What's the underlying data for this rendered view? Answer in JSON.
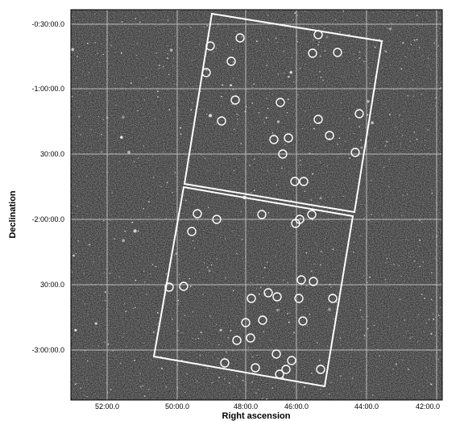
{
  "plot": {
    "xlabel": "Right ascension",
    "ylabel": "Declination",
    "ra_ticks": [
      "52:00.0",
      "50:00.0",
      "48:00.0",
      "46:00.0",
      "44:00.0",
      "42:00.0"
    ],
    "dec_ticks": [
      "-0:30:00.0",
      "-1:00:00.0",
      "30:00.0",
      "-2:00:00.0",
      "30:00.0",
      "-3:00:00.0"
    ]
  },
  "colors": {
    "sky_background": "#3a3a3a",
    "grid": "#dddddd",
    "footprint": "#ffffff",
    "markers": "#ffffff"
  },
  "footprints": [
    "upper-pointing",
    "lower-pointing"
  ],
  "marker_count": 52
}
